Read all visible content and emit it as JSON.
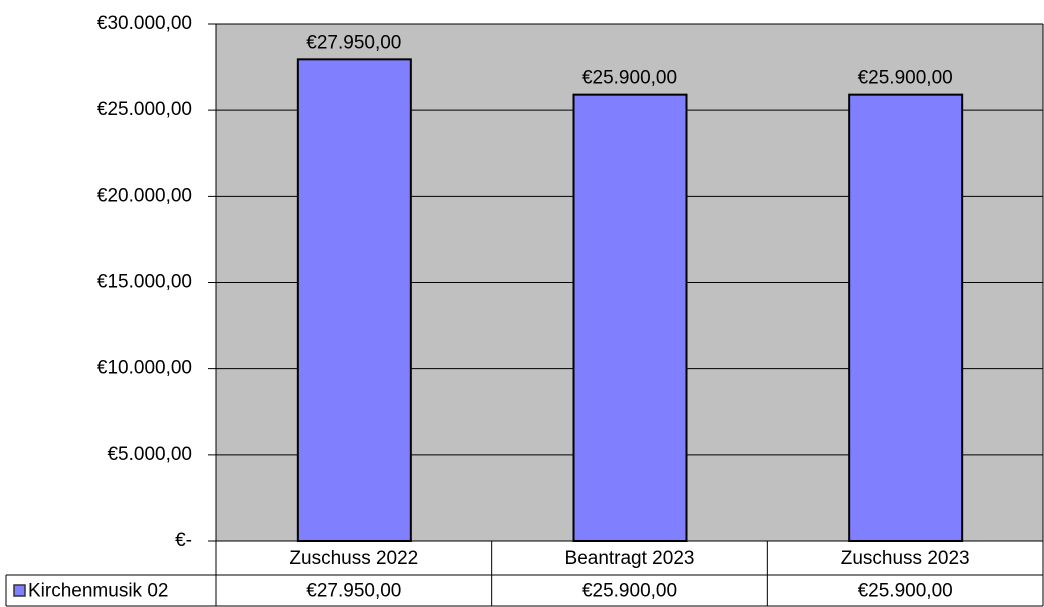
{
  "chart_data": {
    "type": "bar",
    "categories": [
      "Zuschuss 2022",
      "Beantragt 2023",
      "Zuschuss 2023"
    ],
    "series": [
      {
        "name": "Kirchenmusik 02",
        "color": "#8080ff",
        "values": [
          27950,
          25900,
          25900
        ],
        "value_labels": [
          "€27.950,00",
          "€25.900,00",
          "€25.900,00"
        ]
      }
    ],
    "ylim": [
      0,
      30000
    ],
    "yticks": [
      {
        "value": 0,
        "label": "€-"
      },
      {
        "value": 5000,
        "label": "€5.000,00"
      },
      {
        "value": 10000,
        "label": "€10.000,00"
      },
      {
        "value": 15000,
        "label": "€15.000,00"
      },
      {
        "value": 20000,
        "label": "€20.000,00"
      },
      {
        "value": 25000,
        "label": "€25.000,00"
      },
      {
        "value": 30000,
        "label": "€30.000,00"
      }
    ],
    "grid": true
  }
}
